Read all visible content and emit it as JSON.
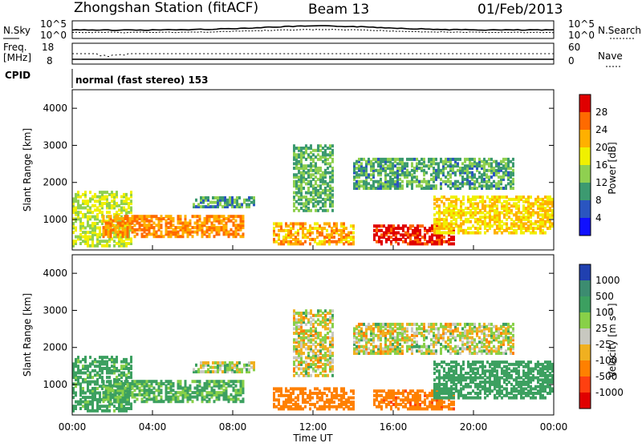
{
  "header": {
    "station": "Zhongshan Station (fitACF)",
    "beam": "Beam 13",
    "date": "01/Feb/2013"
  },
  "noise_panel": {
    "left_label": "N.Sky",
    "right_label": "N.Search",
    "left_top_tick": "10^5",
    "left_bottom_tick": "10^0",
    "right_top_tick": "10^5",
    "right_bottom_tick": "10^0"
  },
  "freq_panel": {
    "left_label_line1": "Freq.",
    "left_label_line2": "[MHz]",
    "right_label": "Nave",
    "left_top_tick": "18",
    "left_bottom_tick": "8",
    "right_top_tick": "60",
    "right_bottom_tick": "0"
  },
  "cpid": {
    "label": "CPID",
    "mode": "normal (fast stereo) 153"
  },
  "x_axis": {
    "title": "Time UT",
    "ticks": [
      "00:00",
      "04:00",
      "08:00",
      "12:00",
      "16:00",
      "20:00",
      "00:00"
    ]
  },
  "power_panel": {
    "y_title": "Slant Range [km]",
    "y_ticks": [
      "4000",
      "3000",
      "2000",
      "1000"
    ],
    "colorbar_title": "Power [dB]",
    "colorbar_ticks": [
      "28",
      "24",
      "20",
      "16",
      "12",
      "8",
      "4"
    ],
    "colorbar_colors": [
      "#e00000",
      "#ff6a00",
      "#ffb000",
      "#f0f000",
      "#8fd050",
      "#3c9a70",
      "#2a55c0",
      "#1010ff"
    ]
  },
  "velocity_panel": {
    "y_title": "Slant Range [km]",
    "y_ticks": [
      "4000",
      "3000",
      "2000",
      "1000"
    ],
    "colorbar_title": "Velocity [m s⁻¹]",
    "colorbar_ticks": [
      "1000",
      "500",
      "100",
      "25",
      "-25",
      "-100",
      "-500",
      "-1000"
    ],
    "colorbar_colors": [
      "#2040b0",
      "#3c8c70",
      "#3ca060",
      "#88d048",
      "#c8c8c0",
      "#f0b020",
      "#ff8000",
      "#ff4010",
      "#e00000"
    ]
  },
  "chart_data": {
    "type": "heatmap",
    "x_range": [
      "00:00",
      "00:00"
    ],
    "y_range_km": [
      180,
      4500
    ],
    "layers": [
      {
        "start_h": 0.0,
        "end_h": 3.0,
        "y_min": 250,
        "y_max": 1700,
        "power_db": 14,
        "velocity": 200
      },
      {
        "start_h": 1.5,
        "end_h": 8.5,
        "y_min": 500,
        "y_max": 1100,
        "power_db": 22,
        "velocity": 150
      },
      {
        "start_h": 6.0,
        "end_h": 9.0,
        "y_min": 1300,
        "y_max": 1600,
        "power_db": 8,
        "velocity": 50
      },
      {
        "start_h": 10.0,
        "end_h": 14.0,
        "y_min": 300,
        "y_max": 900,
        "power_db": 20,
        "velocity": -300
      },
      {
        "start_h": 11.0,
        "end_h": 13.0,
        "y_min": 1200,
        "y_max": 3000,
        "power_db": 10,
        "velocity": 0
      },
      {
        "start_h": 15.0,
        "end_h": 19.0,
        "y_min": 300,
        "y_max": 800,
        "power_db": 28,
        "velocity": -400
      },
      {
        "start_h": 14.0,
        "end_h": 22.0,
        "y_min": 1800,
        "y_max": 2600,
        "power_db": 9,
        "velocity": 0
      },
      {
        "start_h": 18.0,
        "end_h": 24.0,
        "y_min": 600,
        "y_max": 1600,
        "power_db": 18,
        "velocity": 300
      }
    ]
  }
}
